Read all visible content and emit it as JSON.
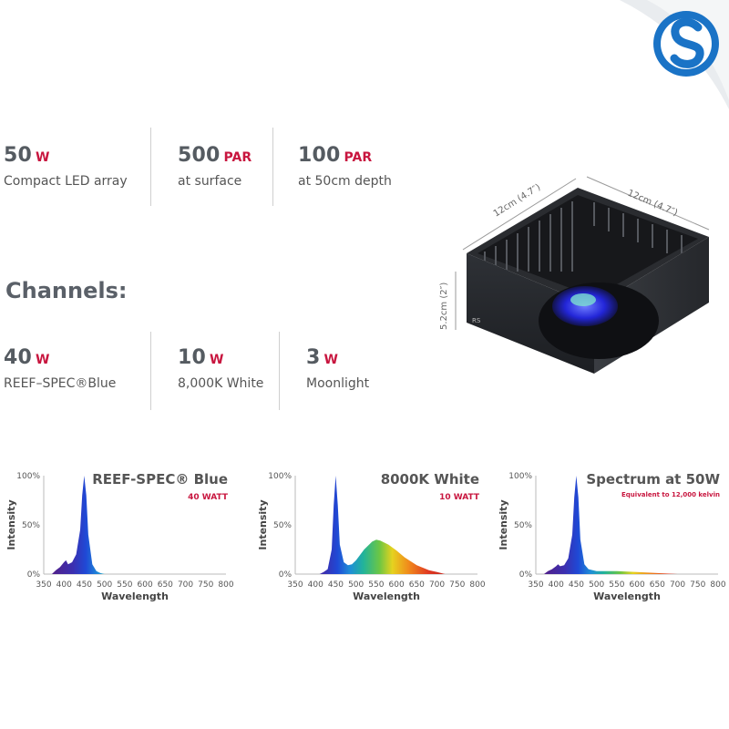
{
  "brand": {
    "accent": "#c8163f",
    "text_gray": "#555b61"
  },
  "specs": [
    {
      "value": "50",
      "unit": "W",
      "caption": "Compact LED array"
    },
    {
      "value": "500",
      "unit": "PAR",
      "caption": "at surface"
    },
    {
      "value": "100",
      "unit": "PAR",
      "caption": "at 50cm depth"
    }
  ],
  "channels": {
    "title": "Channels:",
    "items": [
      {
        "value": "40",
        "unit": "W",
        "caption": "REEF–SPEC®Blue"
      },
      {
        "value": "10",
        "unit": "W",
        "caption": "8,000K White"
      },
      {
        "value": "3",
        "unit": "W",
        "caption": "Moonlight"
      }
    ]
  },
  "product": {
    "dim_width": "12cm (4.7″)",
    "dim_depth": "12cm (4.7″)",
    "dim_height": "5.2cm (2″)",
    "icon": "reef-led-fixture"
  },
  "chart_data": [
    {
      "type": "area",
      "title": "REEF-SPEC® Blue",
      "subtitle": "40 WATT",
      "xlabel": "Wavelength",
      "ylabel": "Intensity",
      "ylim": [
        0,
        100
      ],
      "xlim": [
        350,
        800
      ],
      "y_ticks": [
        "100%",
        "50%",
        "0%"
      ],
      "x_ticks": [
        350,
        400,
        450,
        500,
        550,
        600,
        650,
        700,
        750,
        800
      ],
      "x": [
        370,
        380,
        390,
        400,
        405,
        410,
        420,
        430,
        440,
        445,
        450,
        455,
        460,
        470,
        480,
        490,
        500
      ],
      "values": [
        0,
        4,
        7,
        12,
        14,
        10,
        12,
        20,
        45,
        80,
        100,
        80,
        40,
        10,
        3,
        1,
        0
      ]
    },
    {
      "type": "area",
      "title": "8000K White",
      "subtitle": "10 WATT",
      "xlabel": "Wavelength",
      "ylabel": "Intensity",
      "ylim": [
        0,
        100
      ],
      "xlim": [
        350,
        800
      ],
      "y_ticks": [
        "100%",
        "50%",
        "0%"
      ],
      "x_ticks": [
        350,
        400,
        450,
        500,
        550,
        600,
        650,
        700,
        750,
        800
      ],
      "x": [
        410,
        420,
        430,
        440,
        445,
        450,
        455,
        460,
        470,
        480,
        490,
        500,
        520,
        540,
        550,
        560,
        580,
        600,
        620,
        650,
        680,
        700,
        720
      ],
      "values": [
        0,
        2,
        5,
        25,
        70,
        100,
        70,
        30,
        12,
        9,
        10,
        14,
        25,
        33,
        35,
        34,
        30,
        24,
        17,
        9,
        4,
        2,
        0
      ]
    },
    {
      "type": "area",
      "title": "Spectrum at 50W",
      "subtitle": "Equivalent to 12,000 kelvin",
      "xlabel": "Wavelength",
      "ylabel": "Intensity",
      "ylim": [
        0,
        100
      ],
      "xlim": [
        350,
        800
      ],
      "y_ticks": [
        "100%",
        "50%",
        "0%"
      ],
      "x_ticks": [
        350,
        400,
        450,
        500,
        550,
        600,
        650,
        700,
        750,
        800
      ],
      "x": [
        370,
        380,
        390,
        400,
        405,
        410,
        420,
        430,
        440,
        445,
        450,
        455,
        460,
        470,
        480,
        500,
        550,
        600,
        650,
        700
      ],
      "values": [
        0,
        3,
        5,
        8,
        10,
        8,
        9,
        16,
        40,
        78,
        100,
        78,
        35,
        10,
        5,
        3,
        3,
        2,
        1,
        0
      ]
    }
  ]
}
